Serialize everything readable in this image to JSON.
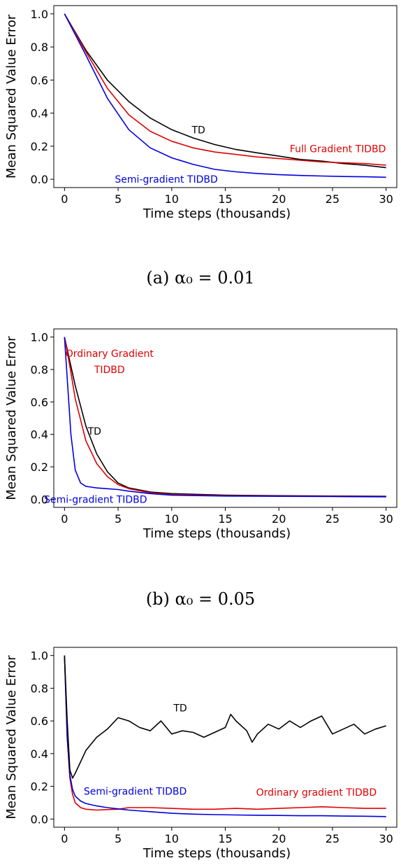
{
  "colors": {
    "td": "#000000",
    "full": "#e00000",
    "semi": "#0000dd"
  },
  "chart_data": [
    {
      "type": "line",
      "caption": "(a) α₀ = 0.01",
      "xlabel": "Time steps (thousands)",
      "ylabel": "Mean Squared Value Error",
      "xlim": [
        -1,
        31
      ],
      "ylim": [
        -0.05,
        1.05
      ],
      "xticks": [
        0,
        5,
        10,
        15,
        20,
        25,
        30
      ],
      "yticks": [
        0.0,
        0.2,
        0.4,
        0.6,
        0.8,
        1.0
      ],
      "grid": false,
      "series": [
        {
          "name": "TD",
          "color": "#000000",
          "x": [
            0,
            2,
            4,
            6,
            8,
            10,
            12,
            14,
            16,
            18,
            20,
            22,
            24,
            26,
            28,
            30
          ],
          "y": [
            1.0,
            0.78,
            0.6,
            0.47,
            0.37,
            0.3,
            0.25,
            0.21,
            0.18,
            0.16,
            0.14,
            0.12,
            0.11,
            0.095,
            0.085,
            0.07
          ]
        },
        {
          "name": "Full Gradient TIDBD",
          "color": "#e00000",
          "x": [
            0,
            2,
            4,
            6,
            8,
            10,
            12,
            14,
            16,
            18,
            20,
            22,
            24,
            26,
            28,
            30
          ],
          "y": [
            1.0,
            0.77,
            0.55,
            0.39,
            0.29,
            0.23,
            0.19,
            0.165,
            0.15,
            0.135,
            0.125,
            0.115,
            0.105,
            0.1,
            0.095,
            0.085
          ]
        },
        {
          "name": "Semi-gradient TIDBD",
          "color": "#0000dd",
          "x": [
            0,
            2,
            4,
            6,
            8,
            10,
            12,
            14,
            16,
            18,
            20,
            22,
            24,
            26,
            28,
            30
          ],
          "y": [
            1.0,
            0.75,
            0.49,
            0.3,
            0.19,
            0.13,
            0.09,
            0.06,
            0.045,
            0.035,
            0.028,
            0.023,
            0.02,
            0.017,
            0.015,
            0.012
          ]
        }
      ],
      "annotations": [
        {
          "text": "TD",
          "x": 12.5,
          "y": 0.3,
          "series": 0
        },
        {
          "text": "Full Gradient TIDBD",
          "x": 25.5,
          "y": 0.185,
          "series": 1
        },
        {
          "text": "Semi-gradient TIDBD",
          "x": 9.5,
          "y": 0.0,
          "series": 2
        }
      ]
    },
    {
      "type": "line",
      "caption": "(b) α₀ = 0.05",
      "xlabel": "Time steps (thousands)",
      "ylabel": "Mean Squared Value Error",
      "xlim": [
        -1,
        31
      ],
      "ylim": [
        -0.05,
        1.05
      ],
      "xticks": [
        0,
        5,
        10,
        15,
        20,
        25,
        30
      ],
      "yticks": [
        0.0,
        0.2,
        0.4,
        0.6,
        0.8,
        1.0
      ],
      "grid": false,
      "series": [
        {
          "name": "TD",
          "color": "#000000",
          "x": [
            0,
            0.5,
            1,
            2,
            3,
            4,
            5,
            6,
            8,
            10,
            15,
            20,
            25,
            30
          ],
          "y": [
            1.0,
            0.85,
            0.7,
            0.45,
            0.28,
            0.17,
            0.1,
            0.07,
            0.045,
            0.035,
            0.025,
            0.022,
            0.02,
            0.018
          ]
        },
        {
          "name": "Ordinary Gradient TIDBD",
          "color": "#e00000",
          "x": [
            0,
            0.5,
            1,
            2,
            3,
            4,
            5,
            6,
            8,
            10,
            15,
            20,
            25,
            30
          ],
          "y": [
            1.0,
            0.82,
            0.62,
            0.36,
            0.22,
            0.14,
            0.09,
            0.065,
            0.04,
            0.03,
            0.022,
            0.02,
            0.018,
            0.016
          ]
        },
        {
          "name": "Semi-gradient TIDBD",
          "color": "#0000dd",
          "x": [
            0,
            0.3,
            0.6,
            1,
            1.5,
            2,
            3,
            4,
            5,
            6,
            8,
            10,
            15,
            20,
            25,
            30
          ],
          "y": [
            1.0,
            0.7,
            0.4,
            0.18,
            0.1,
            0.08,
            0.07,
            0.065,
            0.06,
            0.05,
            0.035,
            0.025,
            0.02,
            0.018,
            0.017,
            0.015
          ]
        }
      ],
      "annotations": [
        {
          "text": "Ordinary Gradient",
          "x": 4.2,
          "y": 0.9,
          "series": 1
        },
        {
          "text": "TIDBD",
          "x": 4.2,
          "y": 0.8,
          "series": 1
        },
        {
          "text": "TD",
          "x": 2.8,
          "y": 0.42,
          "series": 0
        },
        {
          "text": "Semi-gradient TIDBD",
          "x": 2.9,
          "y": 0.0,
          "series": 2
        }
      ]
    },
    {
      "type": "line",
      "caption": "",
      "xlabel": "Time steps (thousands)",
      "ylabel": "Mean Squared Value Error",
      "xlim": [
        -1,
        31
      ],
      "ylim": [
        -0.05,
        1.05
      ],
      "xticks": [
        0,
        5,
        10,
        15,
        20,
        25,
        30
      ],
      "yticks": [
        0.0,
        0.2,
        0.4,
        0.6,
        0.8,
        1.0
      ],
      "grid": false,
      "series": [
        {
          "name": "TD",
          "color": "#000000",
          "x": [
            0,
            0.25,
            0.5,
            0.75,
            1,
            1.5,
            2,
            3,
            4,
            5,
            6,
            7,
            8,
            9,
            10,
            11,
            12,
            13,
            14,
            15,
            15.5,
            16,
            17,
            17.5,
            18,
            19,
            20,
            21,
            22,
            23,
            24,
            25,
            26,
            27,
            28,
            29,
            30
          ],
          "y": [
            1.0,
            0.6,
            0.3,
            0.25,
            0.28,
            0.35,
            0.42,
            0.5,
            0.55,
            0.62,
            0.6,
            0.56,
            0.54,
            0.6,
            0.52,
            0.54,
            0.53,
            0.5,
            0.53,
            0.56,
            0.64,
            0.6,
            0.54,
            0.47,
            0.52,
            0.58,
            0.55,
            0.6,
            0.56,
            0.6,
            0.63,
            0.52,
            0.55,
            0.58,
            0.52,
            0.55,
            0.57
          ]
        },
        {
          "name": "Ordinary gradient TIDBD",
          "color": "#e00000",
          "x": [
            0,
            0.25,
            0.5,
            0.75,
            1,
            1.5,
            2,
            3,
            4,
            5,
            6,
            8,
            10,
            12,
            14,
            16,
            18,
            20,
            22,
            24,
            26,
            28,
            30
          ],
          "y": [
            1.0,
            0.5,
            0.25,
            0.15,
            0.1,
            0.07,
            0.06,
            0.055,
            0.058,
            0.06,
            0.07,
            0.07,
            0.065,
            0.06,
            0.06,
            0.065,
            0.06,
            0.065,
            0.07,
            0.075,
            0.07,
            0.065,
            0.065
          ]
        },
        {
          "name": "Semi-gradient TIDBD",
          "color": "#0000dd",
          "x": [
            0,
            0.25,
            0.5,
            0.75,
            1,
            1.5,
            2,
            3,
            4,
            5,
            6,
            8,
            10,
            12,
            14,
            16,
            18,
            20,
            22,
            24,
            26,
            28,
            30
          ],
          "y": [
            1.0,
            0.5,
            0.27,
            0.18,
            0.14,
            0.11,
            0.095,
            0.08,
            0.07,
            0.062,
            0.055,
            0.045,
            0.035,
            0.03,
            0.027,
            0.025,
            0.023,
            0.022,
            0.02,
            0.02,
            0.018,
            0.017,
            0.015
          ]
        }
      ],
      "annotations": [
        {
          "text": "TD",
          "x": 10.8,
          "y": 0.68,
          "series": 0
        },
        {
          "text": "Semi-gradient TIDBD",
          "x": 6.6,
          "y": 0.17,
          "series": 2
        },
        {
          "text": "Ordinary gradient TIDBD",
          "x": 23.5,
          "y": 0.165,
          "series": 1
        }
      ]
    }
  ]
}
